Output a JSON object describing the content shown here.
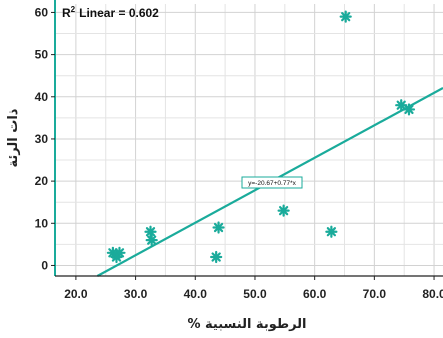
{
  "chart_data": {
    "type": "scatter",
    "title": "",
    "xlabel": "الرطوبة النسبية %",
    "ylabel": "ذات الرئة",
    "xlim": [
      16.5,
      81.5
    ],
    "ylim": [
      -2.5,
      62
    ],
    "xticks": [
      "20.0",
      "30.0",
      "40.0",
      "50.0",
      "60.0",
      "70.0",
      "80.0"
    ],
    "xtick_values": [
      20,
      30,
      40,
      50,
      60,
      70,
      80
    ],
    "yticks": [
      "0",
      "10",
      "20",
      "30",
      "40",
      "50",
      "60"
    ],
    "ytick_values": [
      0,
      10,
      20,
      30,
      40,
      50,
      60
    ],
    "grid": true,
    "color": "#1aab9b",
    "points": [
      {
        "x": 26.2,
        "y": 3
      },
      {
        "x": 26.8,
        "y": 2
      },
      {
        "x": 27.3,
        "y": 3
      },
      {
        "x": 32.5,
        "y": 8
      },
      {
        "x": 32.7,
        "y": 6
      },
      {
        "x": 43.5,
        "y": 2
      },
      {
        "x": 43.9,
        "y": 9
      },
      {
        "x": 54.8,
        "y": 13
      },
      {
        "x": 62.8,
        "y": 8
      },
      {
        "x": 65.2,
        "y": 59
      },
      {
        "x": 74.5,
        "y": 38
      },
      {
        "x": 75.8,
        "y": 37
      }
    ],
    "fit_line": {
      "intercept": -20.67,
      "slope": 0.77
    },
    "fit_equation": "y=-20.67+0.77*x",
    "r2_prefix": "R",
    "r2_sup": "2",
    "r2_label": "Linear = 0.602"
  }
}
